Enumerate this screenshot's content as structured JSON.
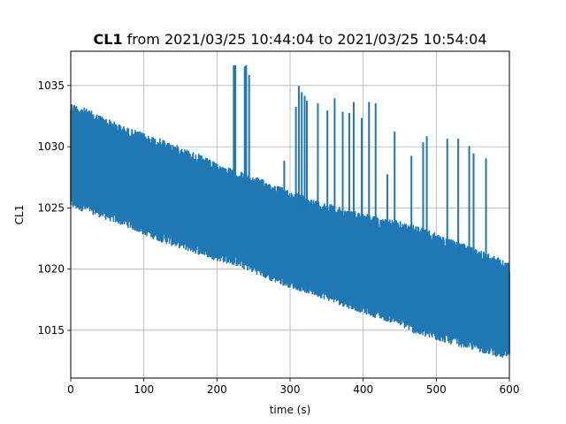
{
  "chart_data": {
    "type": "line",
    "title_bold": "CL1",
    "title_rest": " from 2021/03/25 10:44:04 to 2021/03/25 10:54:04",
    "xlabel": "time (s)",
    "ylabel": "CL1",
    "xlim": [
      0,
      600
    ],
    "ylim": [
      1011.1,
      1037.8
    ],
    "xticks": [
      0,
      100,
      200,
      300,
      400,
      500,
      600
    ],
    "xtick_labels": [
      "0",
      "100",
      "200",
      "300",
      "400",
      "500",
      "600"
    ],
    "yticks": [
      1015,
      1020,
      1025,
      1030,
      1035
    ],
    "ytick_labels": [
      "1015",
      "1020",
      "1025",
      "1030",
      "1035"
    ],
    "grid": true,
    "line_color": "#1f77b4",
    "series": [
      {
        "x": [
          0,
          25,
          50,
          75,
          100,
          125,
          150,
          175,
          200,
          225,
          250,
          275,
          300,
          325,
          350,
          375,
          400,
          425,
          450,
          475,
          500,
          525,
          550,
          575,
          600
        ],
        "lower": [
          1025.0,
          1024.6,
          1024.0,
          1023.5,
          1022.8,
          1022.2,
          1021.7,
          1021.2,
          1020.7,
          1020.3,
          1019.7,
          1019.0,
          1018.5,
          1018.0,
          1017.5,
          1016.9,
          1016.4,
          1015.9,
          1015.4,
          1014.6,
          1014.2,
          1013.8,
          1013.4,
          1013.0,
          1012.6
        ],
        "upper": [
          1033.6,
          1033.0,
          1032.3,
          1031.6,
          1031.1,
          1030.6,
          1030.0,
          1029.4,
          1028.6,
          1028.1,
          1027.6,
          1027.0,
          1026.4,
          1025.8,
          1025.4,
          1024.9,
          1024.6,
          1024.2,
          1023.9,
          1023.5,
          1022.9,
          1022.3,
          1021.8,
          1021.2,
          1020.5
        ]
      }
    ],
    "spikes": [
      {
        "x": 223,
        "y": 1036.6
      },
      {
        "x": 225,
        "y": 1036.6
      },
      {
        "x": 238,
        "y": 1036.5
      },
      {
        "x": 240,
        "y": 1036.6
      },
      {
        "x": 244,
        "y": 1035.8
      },
      {
        "x": 292,
        "y": 1028.8
      },
      {
        "x": 308,
        "y": 1033.2
      },
      {
        "x": 312,
        "y": 1034.9
      },
      {
        "x": 316,
        "y": 1034.4
      },
      {
        "x": 320,
        "y": 1034.1
      },
      {
        "x": 323,
        "y": 1033.7
      },
      {
        "x": 338,
        "y": 1033.5
      },
      {
        "x": 351,
        "y": 1032.9
      },
      {
        "x": 361,
        "y": 1033.9
      },
      {
        "x": 372,
        "y": 1032.8
      },
      {
        "x": 381,
        "y": 1032.7
      },
      {
        "x": 387,
        "y": 1033.6
      },
      {
        "x": 398,
        "y": 1032.3
      },
      {
        "x": 408,
        "y": 1033.6
      },
      {
        "x": 417,
        "y": 1033.5
      },
      {
        "x": 433,
        "y": 1027.7
      },
      {
        "x": 443,
        "y": 1031.2
      },
      {
        "x": 466,
        "y": 1029.2
      },
      {
        "x": 482,
        "y": 1030.3
      },
      {
        "x": 487,
        "y": 1030.8
      },
      {
        "x": 515,
        "y": 1030.6
      },
      {
        "x": 530,
        "y": 1030.6
      },
      {
        "x": 545,
        "y": 1030.0
      },
      {
        "x": 551,
        "y": 1029.4
      },
      {
        "x": 568,
        "y": 1029.0
      }
    ]
  }
}
